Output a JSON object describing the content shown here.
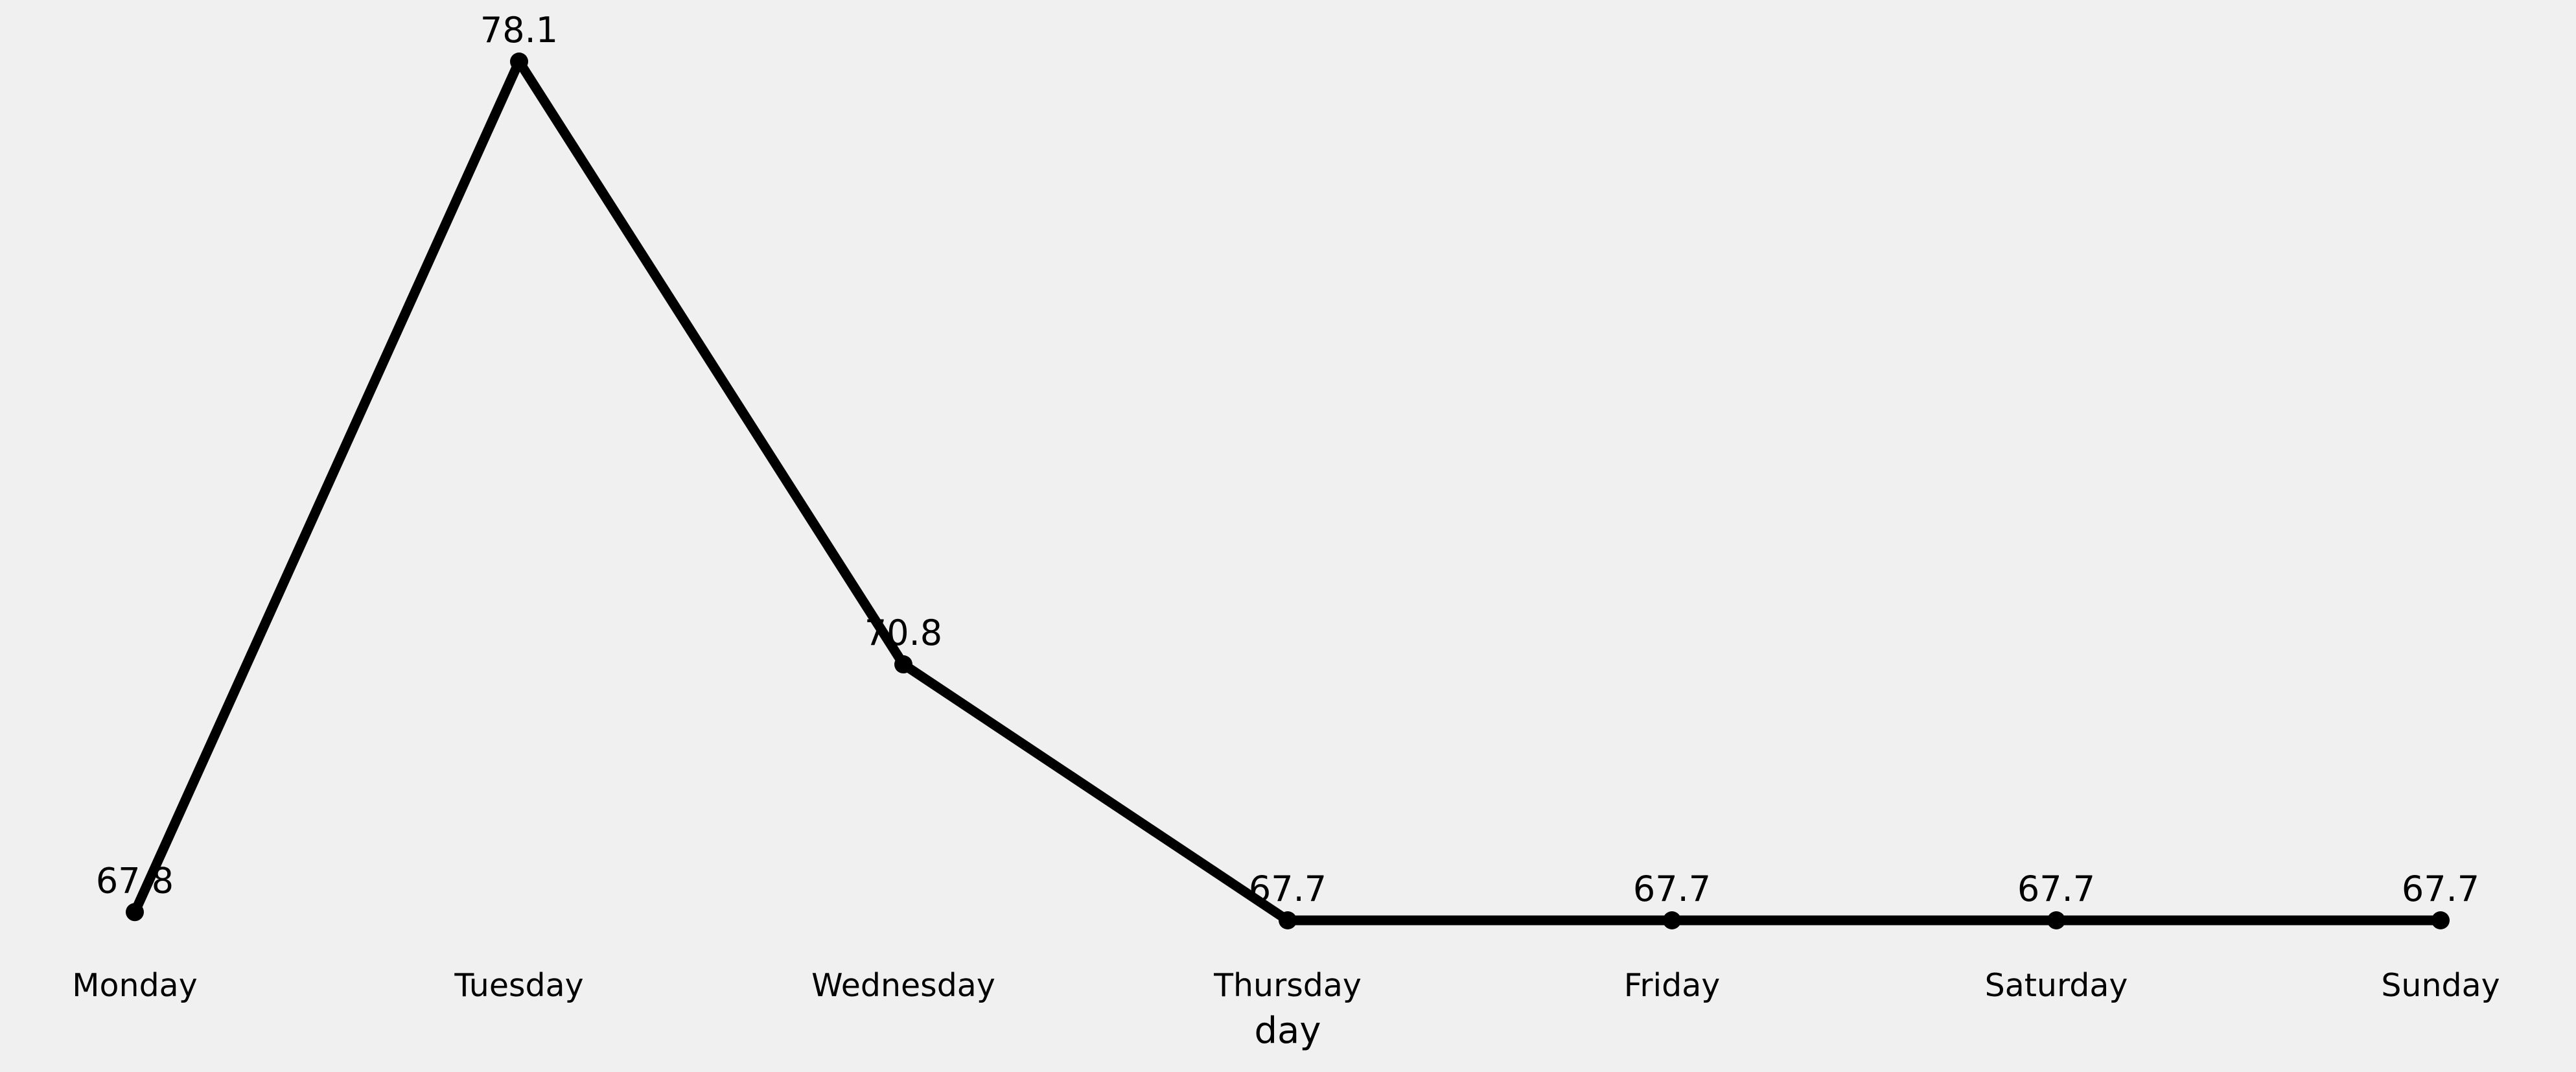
{
  "chart_data": {
    "type": "line",
    "title": "",
    "xlabel": "day",
    "ylabel": "",
    "categories": [
      "Monday",
      "Tuesday",
      "Wednesday",
      "Thursday",
      "Friday",
      "Saturday",
      "Sunday"
    ],
    "series": [
      {
        "values": [
          67.8,
          78.1,
          70.8,
          67.7,
          67.7,
          67.7,
          67.7
        ],
        "data_labels": [
          "67.8",
          "78.1",
          "70.8",
          "67.7",
          "67.7",
          "67.7",
          "67.7"
        ]
      }
    ],
    "ylim": [
      67.7,
      78.1
    ],
    "grid": false,
    "legend": "none",
    "colors": {
      "background": "#f0f0f0",
      "line": "#000000",
      "text": "#000000"
    }
  }
}
